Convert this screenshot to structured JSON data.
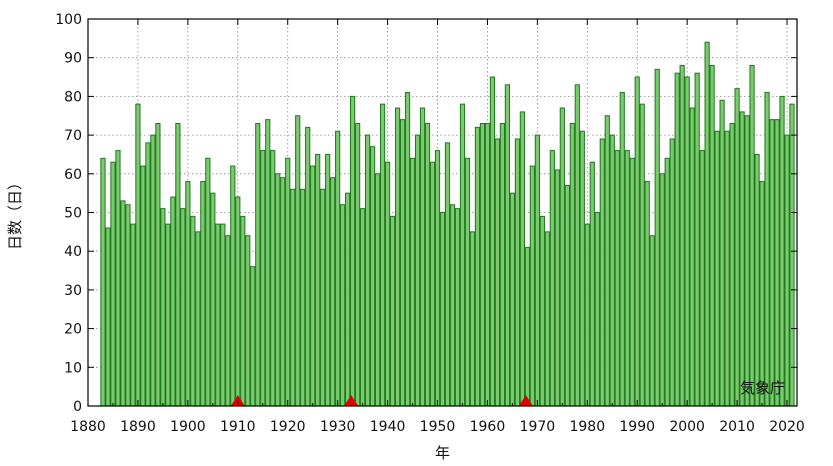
{
  "chart_data": {
    "type": "bar",
    "xlabel": "年",
    "ylabel": "日数（日）",
    "credit": "気象庁",
    "ylim": [
      0,
      100
    ],
    "xlim": [
      1880,
      2022
    ],
    "grid": true,
    "bar_color": "#7dc96f",
    "bar_edge_color": "#1d7a1d",
    "marker_color": "#e00000",
    "x_ticks": [
      1880,
      1890,
      1900,
      1910,
      1920,
      1930,
      1940,
      1950,
      1960,
      1970,
      1980,
      1990,
      2000,
      2010,
      2020
    ],
    "y_ticks": [
      0,
      10,
      20,
      30,
      40,
      50,
      60,
      70,
      80,
      90,
      100
    ],
    "x": [
      1883,
      1884,
      1885,
      1886,
      1887,
      1888,
      1889,
      1890,
      1891,
      1892,
      1893,
      1894,
      1895,
      1896,
      1897,
      1898,
      1899,
      1900,
      1901,
      1902,
      1903,
      1904,
      1905,
      1906,
      1907,
      1908,
      1909,
      1910,
      1911,
      1912,
      1913,
      1914,
      1915,
      1916,
      1917,
      1918,
      1919,
      1920,
      1921,
      1922,
      1923,
      1924,
      1925,
      1926,
      1927,
      1928,
      1929,
      1930,
      1931,
      1932,
      1933,
      1934,
      1935,
      1936,
      1937,
      1938,
      1939,
      1940,
      1941,
      1942,
      1943,
      1944,
      1945,
      1946,
      1947,
      1948,
      1949,
      1950,
      1951,
      1952,
      1953,
      1954,
      1955,
      1956,
      1957,
      1958,
      1959,
      1960,
      1961,
      1962,
      1963,
      1964,
      1965,
      1966,
      1967,
      1968,
      1969,
      1970,
      1971,
      1972,
      1973,
      1974,
      1975,
      1976,
      1977,
      1978,
      1979,
      1980,
      1981,
      1982,
      1983,
      1984,
      1985,
      1986,
      1987,
      1988,
      1989,
      1990,
      1991,
      1992,
      1993,
      1994,
      1995,
      1996,
      1997,
      1998,
      1999,
      2000,
      2001,
      2002,
      2003,
      2004,
      2005,
      2006,
      2007,
      2008,
      2009,
      2010,
      2011,
      2012,
      2013,
      2014,
      2015,
      2016,
      2017,
      2018,
      2019,
      2020,
      2021
    ],
    "values": [
      64,
      46,
      63,
      66,
      53,
      52,
      47,
      78,
      62,
      68,
      70,
      73,
      51,
      47,
      54,
      73,
      51,
      58,
      49,
      45,
      58,
      64,
      55,
      47,
      47,
      44,
      62,
      54,
      49,
      44,
      36,
      73,
      66,
      74,
      66,
      60,
      59,
      64,
      56,
      75,
      56,
      72,
      62,
      65,
      56,
      65,
      59,
      71,
      52,
      55,
      80,
      73,
      51,
      70,
      67,
      60,
      78,
      63,
      49,
      77,
      74,
      81,
      64,
      70,
      77,
      73,
      63,
      66,
      50,
      68,
      52,
      51,
      78,
      64,
      45,
      72,
      73,
      73,
      85,
      69,
      73,
      83,
      55,
      69,
      76,
      41,
      62,
      70,
      49,
      45,
      66,
      61,
      77,
      57,
      73,
      83,
      71,
      47,
      63,
      50,
      69,
      75,
      70,
      66,
      81,
      66,
      64,
      85,
      78,
      58,
      44,
      87,
      60,
      64,
      69,
      86,
      88,
      85,
      77,
      86,
      66,
      94,
      88,
      71,
      79,
      71,
      73,
      82,
      76,
      75,
      88,
      65,
      58,
      81,
      74,
      74,
      80,
      70,
      78
    ],
    "markers": [
      1910,
      1932.7,
      1967.7
    ]
  }
}
